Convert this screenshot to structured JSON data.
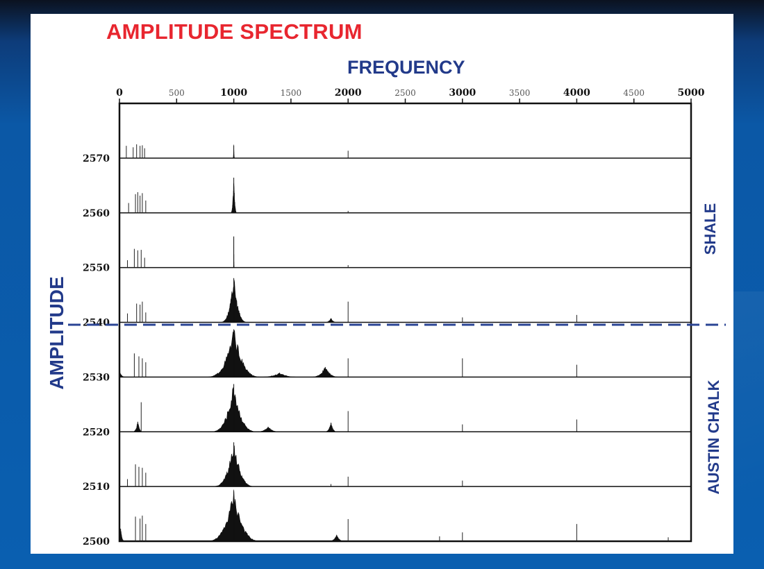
{
  "slide": {
    "title": "AMPLITUDE SPECTRUM",
    "x_axis_label": "FREQUENCY",
    "y_axis_label": "AMPLITUDE",
    "zone_labels": {
      "upper": "SHALE",
      "lower": "AUSTIN CHALK"
    }
  },
  "colors": {
    "title": "#e8262f",
    "labels": "#223a8a",
    "boundary_line": "#2a4494",
    "trace": "#111111",
    "background": "#0a5fb0"
  },
  "chart_data": {
    "type": "area",
    "title": "AMPLITUDE SPECTRUM",
    "xlabel": "FREQUENCY",
    "ylabel": "AMPLITUDE",
    "xlim": [
      0,
      5000
    ],
    "x_ticks": [
      {
        "value": 0,
        "label": "0",
        "major": true
      },
      {
        "value": 500,
        "label": "500",
        "major": false
      },
      {
        "value": 1000,
        "label": "1000",
        "major": true
      },
      {
        "value": 1500,
        "label": "1500",
        "major": false
      },
      {
        "value": 2000,
        "label": "2000",
        "major": true
      },
      {
        "value": 2500,
        "label": "2500",
        "major": false
      },
      {
        "value": 3000,
        "label": "3000",
        "major": true
      },
      {
        "value": 3500,
        "label": "3500",
        "major": false
      },
      {
        "value": 4000,
        "label": "4000",
        "major": true
      },
      {
        "value": 4500,
        "label": "4500",
        "major": false
      },
      {
        "value": 5000,
        "label": "5000",
        "major": true
      }
    ],
    "boundary_between": [
      "2540",
      "2530"
    ],
    "series": [
      {
        "name": "2570",
        "zone": "upper",
        "peaks": [
          {
            "f": 60,
            "a": 0.25,
            "w": 0
          },
          {
            "f": 120,
            "a": 0.22,
            "w": 0
          },
          {
            "f": 150,
            "a": 0.28,
            "w": 0
          },
          {
            "f": 180,
            "a": 0.25,
            "w": 0
          },
          {
            "f": 200,
            "a": 0.26,
            "w": 0
          },
          {
            "f": 220,
            "a": 0.2,
            "w": 0
          },
          {
            "f": 1000,
            "a": 0.25,
            "w": 8
          },
          {
            "f": 2000,
            "a": 0.15,
            "w": 0
          }
        ]
      },
      {
        "name": "2560",
        "zone": "upper",
        "peaks": [
          {
            "f": 80,
            "a": 0.2,
            "w": 0
          },
          {
            "f": 140,
            "a": 0.38,
            "w": 0
          },
          {
            "f": 160,
            "a": 0.42,
            "w": 0
          },
          {
            "f": 180,
            "a": 0.35,
            "w": 0
          },
          {
            "f": 200,
            "a": 0.4,
            "w": 0
          },
          {
            "f": 230,
            "a": 0.25,
            "w": 0
          },
          {
            "f": 1000,
            "a": 0.7,
            "w": 30
          },
          {
            "f": 2000,
            "a": 0.04,
            "w": 0
          }
        ]
      },
      {
        "name": "2550",
        "zone": "upper",
        "peaks": [
          {
            "f": 70,
            "a": 0.15,
            "w": 0
          },
          {
            "f": 130,
            "a": 0.38,
            "w": 0
          },
          {
            "f": 160,
            "a": 0.35,
            "w": 0
          },
          {
            "f": 190,
            "a": 0.36,
            "w": 0
          },
          {
            "f": 220,
            "a": 0.2,
            "w": 0
          },
          {
            "f": 1000,
            "a": 0.62,
            "w": 4
          },
          {
            "f": 2000,
            "a": 0.05,
            "w": 0
          }
        ]
      },
      {
        "name": "2540",
        "zone": "upper",
        "peaks": [
          {
            "f": 70,
            "a": 0.18,
            "w": 0
          },
          {
            "f": 150,
            "a": 0.38,
            "w": 0
          },
          {
            "f": 180,
            "a": 0.36,
            "w": 0
          },
          {
            "f": 200,
            "a": 0.42,
            "w": 0
          },
          {
            "f": 230,
            "a": 0.2,
            "w": 0
          },
          {
            "f": 1000,
            "a": 0.88,
            "w": 130
          },
          {
            "f": 1850,
            "a": 0.08,
            "w": 60
          },
          {
            "f": 2000,
            "a": 0.42,
            "w": 0
          },
          {
            "f": 3000,
            "a": 0.1,
            "w": 0
          },
          {
            "f": 4000,
            "a": 0.15,
            "w": 0
          }
        ]
      },
      {
        "name": "2530",
        "zone": "lower",
        "peaks": [
          {
            "f": 0,
            "a": 0.12,
            "w": 60
          },
          {
            "f": 130,
            "a": 0.48,
            "w": 0
          },
          {
            "f": 170,
            "a": 0.42,
            "w": 0
          },
          {
            "f": 200,
            "a": 0.38,
            "w": 0
          },
          {
            "f": 230,
            "a": 0.3,
            "w": 0
          },
          {
            "f": 1000,
            "a": 0.95,
            "w": 260
          },
          {
            "f": 1400,
            "a": 0.08,
            "w": 200
          },
          {
            "f": 1800,
            "a": 0.2,
            "w": 140
          },
          {
            "f": 2000,
            "a": 0.38,
            "w": 0
          },
          {
            "f": 3000,
            "a": 0.38,
            "w": 0
          },
          {
            "f": 4000,
            "a": 0.25,
            "w": 0
          }
        ]
      },
      {
        "name": "2520",
        "zone": "lower",
        "peaks": [
          {
            "f": 160,
            "a": 0.2,
            "w": 50
          },
          {
            "f": 190,
            "a": 0.6,
            "w": 0
          },
          {
            "f": 1000,
            "a": 0.95,
            "w": 220
          },
          {
            "f": 1300,
            "a": 0.1,
            "w": 120
          },
          {
            "f": 1850,
            "a": 0.18,
            "w": 60
          },
          {
            "f": 2000,
            "a": 0.42,
            "w": 0
          },
          {
            "f": 3000,
            "a": 0.15,
            "w": 0
          },
          {
            "f": 4000,
            "a": 0.25,
            "w": 0
          }
        ]
      },
      {
        "name": "2510",
        "zone": "lower",
        "peaks": [
          {
            "f": 70,
            "a": 0.15,
            "w": 0
          },
          {
            "f": 140,
            "a": 0.45,
            "w": 0
          },
          {
            "f": 170,
            "a": 0.4,
            "w": 0
          },
          {
            "f": 200,
            "a": 0.38,
            "w": 0
          },
          {
            "f": 230,
            "a": 0.28,
            "w": 0
          },
          {
            "f": 1000,
            "a": 0.88,
            "w": 200
          },
          {
            "f": 1850,
            "a": 0.05,
            "w": 0
          },
          {
            "f": 2000,
            "a": 0.2,
            "w": 0
          },
          {
            "f": 3000,
            "a": 0.12,
            "w": 0
          }
        ]
      },
      {
        "name": "2500",
        "zone": "lower",
        "peaks": [
          {
            "f": 10,
            "a": 0.25,
            "w": 40
          },
          {
            "f": 140,
            "a": 0.5,
            "w": 0
          },
          {
            "f": 180,
            "a": 0.46,
            "w": 0
          },
          {
            "f": 200,
            "a": 0.52,
            "w": 0
          },
          {
            "f": 230,
            "a": 0.35,
            "w": 0
          },
          {
            "f": 1000,
            "a": 1.0,
            "w": 260
          },
          {
            "f": 1900,
            "a": 0.12,
            "w": 80
          },
          {
            "f": 2000,
            "a": 0.45,
            "w": 0
          },
          {
            "f": 2800,
            "a": 0.1,
            "w": 0
          },
          {
            "f": 3000,
            "a": 0.18,
            "w": 0
          },
          {
            "f": 4000,
            "a": 0.35,
            "w": 0
          },
          {
            "f": 4800,
            "a": 0.08,
            "w": 0
          }
        ]
      }
    ]
  }
}
